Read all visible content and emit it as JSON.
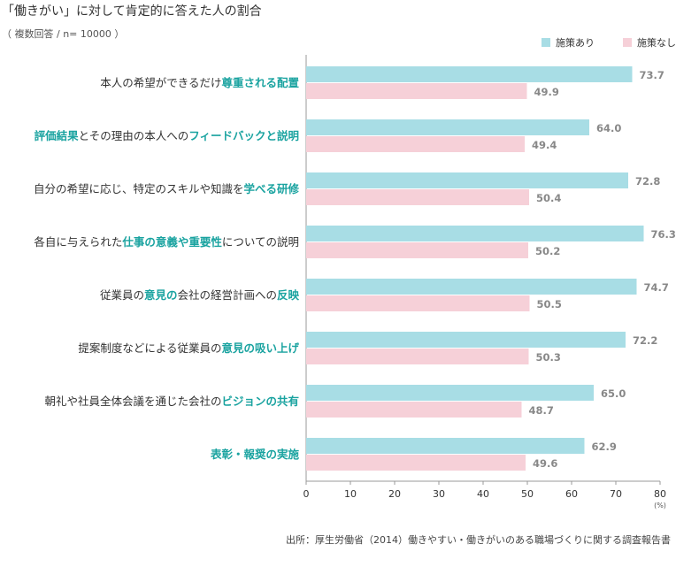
{
  "chart_data": {
    "type": "bar",
    "orientation": "horizontal",
    "title": "「働きがい」に対して肯定的に答えた人の割合",
    "subtitle": "（ 複数回答 / n= 10000 ）",
    "source": "出所：厚生労働省（2014）働きやすい・働きがいのある職場づくりに関する調査報告書",
    "xlim": [
      0,
      80
    ],
    "ticks": [
      0,
      10,
      20,
      30,
      40,
      50,
      60,
      70,
      80
    ],
    "unit_label": "(%)",
    "legend_position": "top-right",
    "categories": [
      [
        {
          "t": "本人の希望ができるだけ",
          "h": false
        },
        {
          "t": "尊重される配置",
          "h": true
        }
      ],
      [
        {
          "t": "評価結果",
          "h": true
        },
        {
          "t": "とその理由の本人への",
          "h": false
        },
        {
          "t": "フィードバックと説明",
          "h": true
        }
      ],
      [
        {
          "t": "自分の希望に応じ、特定のスキルや知識を",
          "h": false
        },
        {
          "t": "学べる研修",
          "h": true
        }
      ],
      [
        {
          "t": "各自に与えられた",
          "h": false
        },
        {
          "t": "仕事の意義や重要性",
          "h": true
        },
        {
          "t": "についての説明",
          "h": false
        }
      ],
      [
        {
          "t": "従業員の",
          "h": false
        },
        {
          "t": "意見の",
          "h": true
        },
        {
          "t": "会社の経営計画への",
          "h": false
        },
        {
          "t": "反映",
          "h": true
        }
      ],
      [
        {
          "t": "提案制度などによる従業員の",
          "h": false
        },
        {
          "t": "意見の吸い上げ",
          "h": true
        }
      ],
      [
        {
          "t": "朝礼や社員全体会議を通じた会社の",
          "h": false
        },
        {
          "t": "ビジョンの共有",
          "h": true
        }
      ],
      [
        {
          "t": "表彰・報奨の実施",
          "h": true
        }
      ]
    ],
    "series": [
      {
        "name": "施策あり",
        "color": "#a8dde5",
        "values": [
          73.7,
          64.0,
          72.8,
          76.3,
          74.7,
          72.2,
          65.0,
          62.9
        ],
        "labels": [
          "73.7",
          "64.0",
          "72.8",
          "76.3",
          "74.7",
          "72.2",
          "65.0",
          "62.9"
        ]
      },
      {
        "name": "施策なし",
        "color": "#f6d0d8",
        "values": [
          49.9,
          49.4,
          50.4,
          50.2,
          50.5,
          50.3,
          48.7,
          49.6
        ],
        "labels": [
          "49.9",
          "49.4",
          "50.4",
          "50.2",
          "50.5",
          "50.3",
          "48.7",
          "49.6"
        ]
      }
    ]
  }
}
